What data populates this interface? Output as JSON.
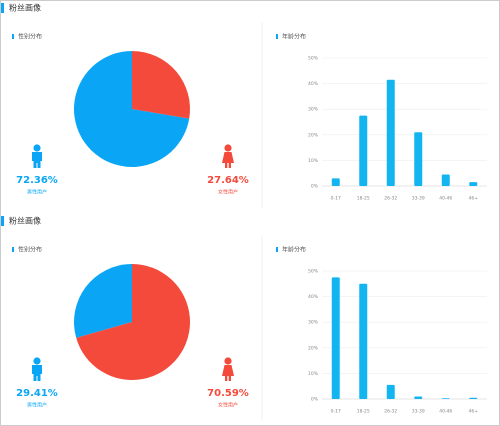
{
  "sections": [
    {
      "title": "粉丝画像"
    },
    {
      "title": "粉丝画像"
    }
  ],
  "chart_data": [
    {
      "type": "pie",
      "title": "性别分布",
      "categories": [
        "男性用户",
        "女性用户"
      ],
      "values": [
        72.36,
        27.64
      ],
      "value_labels": [
        "72.36%",
        "27.64%"
      ],
      "colors": [
        "#0aa6f5",
        "#f44a3b"
      ]
    },
    {
      "type": "bar",
      "title": "年龄分布",
      "categories": [
        "0-17",
        "18-25",
        "26-32",
        "33-39",
        "40-46",
        "46+"
      ],
      "values": [
        3,
        27.5,
        41.5,
        21,
        4.5,
        1.5
      ],
      "color": "#13b5f0",
      "ylim": [
        0,
        50
      ],
      "yticks": [
        {
          "value": 0,
          "label": "0%"
        },
        {
          "value": 10,
          "label": "10%"
        },
        {
          "value": 20,
          "label": "20%"
        },
        {
          "value": 30,
          "label": "30%"
        },
        {
          "value": 40,
          "label": "40%"
        },
        {
          "value": 50,
          "label": "50%"
        }
      ],
      "grid": true
    },
    {
      "type": "pie",
      "title": "性别分布",
      "categories": [
        "男性用户",
        "女性用户"
      ],
      "values": [
        29.41,
        70.59
      ],
      "value_labels": [
        "29.41%",
        "70.59%"
      ],
      "colors": [
        "#0aa6f5",
        "#f44a3b"
      ]
    },
    {
      "type": "bar",
      "title": "年龄分布",
      "categories": [
        "0-17",
        "18-25",
        "26-32",
        "33-39",
        "40-46",
        "46+"
      ],
      "values": [
        47.5,
        45,
        5.5,
        1,
        0.3,
        0.5
      ],
      "color": "#13b5f0",
      "ylim": [
        0,
        50
      ],
      "yticks": [
        {
          "value": 0,
          "label": "0%"
        },
        {
          "value": 10,
          "label": "10%"
        },
        {
          "value": 20,
          "label": "20%"
        },
        {
          "value": 30,
          "label": "30%"
        },
        {
          "value": 40,
          "label": "40%"
        },
        {
          "value": 50,
          "label": "50%"
        }
      ],
      "grid": true
    }
  ]
}
